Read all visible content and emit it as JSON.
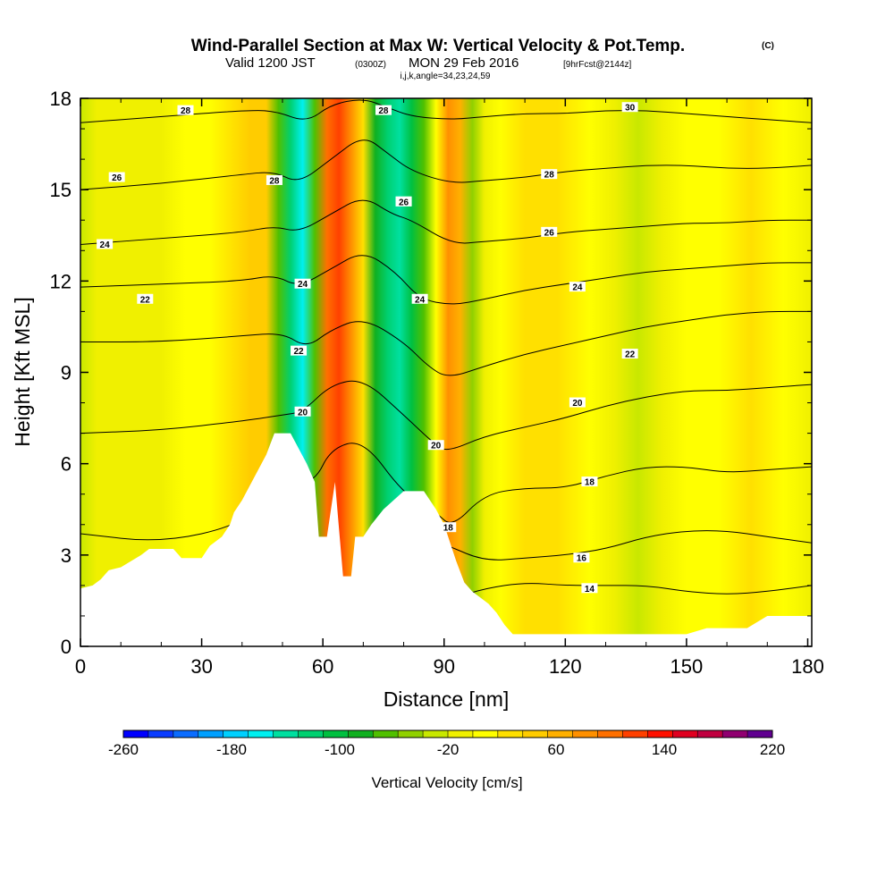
{
  "header": {
    "title": "Wind-Parallel Section at Max W: Vertical Velocity & Pot.Temp.",
    "title_mark": "(C)",
    "valid_prefix": "Valid 1200 JST",
    "valid_zulu": "(0300Z)",
    "valid_date": "MON 29 Feb 2016",
    "forecast_tag": "[9hrFcst@2144z]",
    "indices": "i,j,k,angle=34,23,24,59"
  },
  "chart_data": {
    "type": "heatmap",
    "xlabel": "Distance [nm]",
    "ylabel": "Height [Kft MSL]",
    "xlim": [
      0,
      181
    ],
    "ylim": [
      0,
      18
    ],
    "xticks": [
      0,
      30,
      60,
      90,
      120,
      150,
      180
    ],
    "yticks": [
      0,
      3,
      6,
      9,
      12,
      15,
      18
    ],
    "velocity_columns": {
      "x": [
        0,
        4,
        8,
        14,
        20,
        26,
        32,
        38,
        42,
        46,
        49,
        52,
        55,
        58,
        61,
        64,
        67,
        70,
        73,
        76,
        79,
        82,
        85,
        88,
        91,
        94,
        97,
        100,
        104,
        110,
        118,
        126,
        132,
        138,
        144,
        150,
        158,
        166,
        174,
        181
      ],
      "values_cm_s": [
        -10,
        10,
        0,
        10,
        10,
        20,
        20,
        40,
        60,
        60,
        -60,
        -120,
        -160,
        -60,
        130,
        150,
        110,
        40,
        -80,
        -110,
        -140,
        -100,
        -60,
        20,
        100,
        80,
        -40,
        0,
        20,
        40,
        40,
        30,
        0,
        -20,
        10,
        20,
        30,
        40,
        30,
        10
      ]
    },
    "terrain_profile": {
      "x": [
        0,
        3,
        5,
        7,
        10,
        15,
        17,
        20,
        23,
        25,
        30,
        32,
        35,
        37,
        38,
        40,
        42,
        44,
        46,
        48,
        50,
        52,
        54,
        56,
        58,
        59,
        61,
        63,
        65,
        67,
        68,
        70,
        72,
        75,
        80,
        85,
        88,
        90,
        91,
        93,
        95,
        97,
        99,
        101,
        103,
        105,
        107,
        110,
        115,
        120,
        130,
        140,
        150,
        155,
        160,
        165,
        170,
        175,
        180,
        181
      ],
      "height_kft": [
        1.9,
        2.0,
        2.2,
        2.5,
        2.6,
        3.0,
        3.2,
        3.2,
        3.2,
        2.9,
        2.9,
        3.3,
        3.6,
        4.0,
        4.4,
        4.8,
        5.3,
        5.8,
        6.3,
        7.0,
        7.0,
        7.0,
        6.5,
        6.0,
        5.4,
        3.6,
        3.6,
        5.4,
        2.3,
        2.3,
        3.6,
        3.6,
        4.0,
        4.5,
        5.1,
        5.1,
        4.5,
        4.0,
        3.6,
        2.8,
        2.1,
        1.8,
        1.6,
        1.4,
        1.1,
        0.7,
        0.4,
        0.4,
        0.4,
        0.4,
        0.4,
        0.4,
        0.4,
        0.6,
        0.6,
        0.6,
        1.0,
        1.0,
        1.0,
        1.0
      ]
    },
    "potential_temperature_contours": [
      {
        "label": "14",
        "level": 14,
        "x": [
          93,
          100,
          110,
          120,
          130,
          140,
          150,
          160,
          170,
          181
        ],
        "y": [
          1.6,
          1.9,
          2.1,
          2.0,
          2.0,
          2.0,
          1.8,
          1.7,
          1.8,
          2.0
        ],
        "label_at": [
          126,
          1.9
        ]
      },
      {
        "label": "16",
        "level": 16,
        "x": [
          91,
          100,
          110,
          120,
          130,
          140,
          150,
          160,
          170,
          181
        ],
        "y": [
          3.3,
          2.8,
          2.9,
          3.0,
          3.2,
          3.6,
          3.8,
          3.8,
          3.6,
          3.4
        ],
        "label_at": [
          124,
          2.9
        ]
      },
      {
        "label": "18",
        "level": 18,
        "x": [
          0,
          20,
          40,
          50,
          58,
          62,
          70,
          80,
          88,
          92,
          100,
          110,
          120,
          130,
          140,
          150,
          160,
          170,
          181
        ],
        "y": [
          3.7,
          3.4,
          4.0,
          5.2,
          5.4,
          6.5,
          6.8,
          5.0,
          4.4,
          3.9,
          5.0,
          5.2,
          5.2,
          5.6,
          5.9,
          5.9,
          5.7,
          5.8,
          5.9
        ],
        "label_at": [
          91,
          3.9
        ]
      },
      {
        "label": "20",
        "level": 20,
        "x": [
          0,
          20,
          40,
          50,
          55,
          62,
          70,
          80,
          88,
          91,
          100,
          110,
          120,
          130,
          140,
          150,
          160,
          170,
          181
        ],
        "y": [
          7.0,
          7.1,
          7.4,
          7.6,
          7.7,
          8.6,
          8.8,
          7.6,
          6.6,
          6.4,
          6.9,
          7.2,
          7.5,
          7.9,
          8.2,
          8.4,
          8.4,
          8.5,
          8.6
        ],
        "label_at": [
          88,
          6.6
        ]
      },
      {
        "label": "22",
        "level": 22,
        "x": [
          0,
          20,
          40,
          50,
          56,
          62,
          70,
          80,
          86,
          91,
          100,
          110,
          120,
          130,
          140,
          150,
          160,
          170,
          181
        ],
        "y": [
          10.0,
          10.0,
          10.2,
          10.3,
          9.8,
          10.4,
          10.8,
          10.0,
          9.2,
          8.8,
          9.2,
          9.6,
          9.9,
          10.2,
          10.5,
          10.7,
          10.9,
          11.0,
          11.0
        ],
        "label_at": [
          54,
          9.7
        ]
      },
      {
        "label": "24",
        "level": 24,
        "x": [
          0,
          20,
          40,
          48,
          54,
          62,
          70,
          78,
          84,
          92,
          100,
          110,
          120,
          130,
          140,
          150,
          160,
          170,
          181
        ],
        "y": [
          11.8,
          11.9,
          12.0,
          12.2,
          11.8,
          12.4,
          13.0,
          12.3,
          11.4,
          11.2,
          11.4,
          11.7,
          11.9,
          12.1,
          12.3,
          12.4,
          12.5,
          12.6,
          12.6
        ],
        "label_at": [
          84,
          11.4
        ]
      },
      {
        "label": "26",
        "level": 26,
        "x": [
          0,
          20,
          40,
          48,
          54,
          62,
          70,
          77,
          82,
          92,
          100,
          110,
          120,
          130,
          140,
          150,
          160,
          170,
          181
        ],
        "y": [
          13.2,
          13.4,
          13.6,
          13.8,
          13.6,
          14.2,
          14.8,
          14.2,
          14.0,
          13.2,
          13.3,
          13.4,
          13.6,
          13.7,
          13.8,
          13.9,
          13.9,
          14.0,
          14.0
        ],
        "label_at": [
          80,
          14.6
        ]
      },
      {
        "label": "28",
        "level": 28,
        "x": [
          0,
          20,
          40,
          48,
          54,
          62,
          70,
          76,
          82,
          92,
          100,
          110,
          120,
          130,
          140,
          150,
          160,
          170,
          181
        ],
        "y": [
          15.0,
          15.2,
          15.5,
          15.6,
          15.2,
          16.0,
          16.8,
          16.2,
          15.6,
          15.2,
          15.3,
          15.4,
          15.6,
          15.7,
          15.8,
          15.8,
          15.7,
          15.7,
          15.8
        ],
        "label_at": [
          48,
          15.3
        ]
      },
      {
        "label": "30",
        "level": 30,
        "x": [
          0,
          20,
          40,
          48,
          56,
          62,
          70,
          76,
          82,
          92,
          100,
          110,
          120,
          130,
          140,
          150,
          160,
          170,
          181
        ],
        "y": [
          17.2,
          17.4,
          17.6,
          17.6,
          17.2,
          17.8,
          18.0,
          17.7,
          17.4,
          17.3,
          17.4,
          17.5,
          17.5,
          17.6,
          17.6,
          17.5,
          17.4,
          17.3,
          17.2
        ],
        "label_at": [
          136,
          17.7
        ]
      }
    ],
    "extra_contour_labels": [
      {
        "text": "28",
        "x": 26,
        "y": 17.6
      },
      {
        "text": "26",
        "x": 9,
        "y": 15.4
      },
      {
        "text": "24",
        "x": 6,
        "y": 13.2
      },
      {
        "text": "22",
        "x": 16,
        "y": 11.4
      },
      {
        "text": "20",
        "x": 55,
        "y": 7.7
      },
      {
        "text": "24",
        "x": 55,
        "y": 11.9
      },
      {
        "text": "26",
        "x": 80,
        "y": 14.6
      },
      {
        "text": "28",
        "x": 75,
        "y": 17.6
      },
      {
        "text": "28",
        "x": 116,
        "y": 15.5
      },
      {
        "text": "26",
        "x": 116,
        "y": 13.6
      },
      {
        "text": "24",
        "x": 123,
        "y": 11.8
      },
      {
        "text": "22",
        "x": 136,
        "y": 9.6
      },
      {
        "text": "20",
        "x": 123,
        "y": 8.0
      },
      {
        "text": "18",
        "x": 126,
        "y": 5.4
      }
    ],
    "colorbar": {
      "label": "Vertical Velocity [cm/s]",
      "tick_labels": [
        "-260",
        "-180",
        "-100",
        "-20",
        "60",
        "140",
        "220"
      ],
      "min": -260,
      "max": 220,
      "step": 20,
      "colors": [
        "#0000ff",
        "#0a3cff",
        "#0a6cff",
        "#00a0ff",
        "#00d0ff",
        "#00f0f0",
        "#00e0a0",
        "#00d070",
        "#00c040",
        "#10b020",
        "#50c000",
        "#90d000",
        "#c8e800",
        "#f0f000",
        "#ffff00",
        "#ffe000",
        "#ffcc00",
        "#ffb000",
        "#ff9000",
        "#ff7000",
        "#ff4000",
        "#ff1000",
        "#e00020",
        "#c00040",
        "#900070",
        "#600090"
      ]
    }
  }
}
